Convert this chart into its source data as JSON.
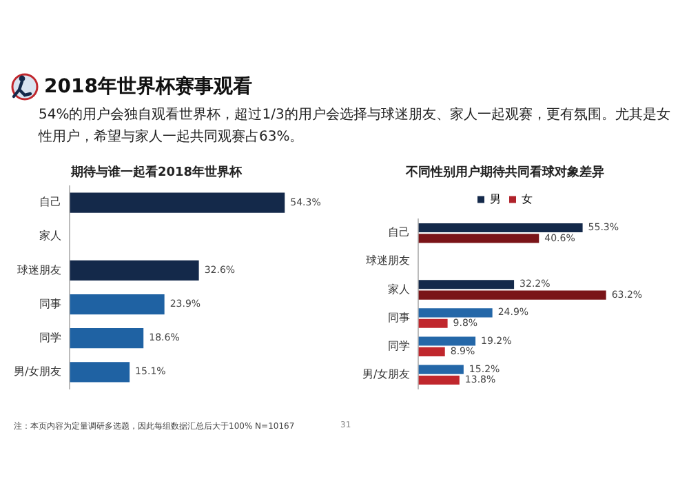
{
  "chart_data": [
    {
      "type": "bar",
      "orientation": "horizontal",
      "title": "期待与谁一起看2018年世界杯",
      "categories": [
        "自己",
        "家人",
        "球迷朋友",
        "同事",
        "同学",
        "男/女朋友"
      ],
      "values": [
        54.3,
        null,
        32.6,
        23.9,
        18.6,
        15.1
      ],
      "value_labels": [
        "54.3%",
        null,
        "32.6%",
        "23.9%",
        "18.6%",
        "15.1%"
      ],
      "colors": [
        "#14294a",
        "#14294a",
        "#14294a",
        "#1f62a3",
        "#1f62a3",
        "#1f62a3"
      ],
      "grid": false,
      "legend": false,
      "annotations": [
        "2018年世界杯赛事观看",
        "54%的用户会独自观看世界杯，超过1/3的用户会选择与球迷朋友、家人一起观赛，更有氛围。尤其是女性用户，希望与家人一起共同观赛占63%。",
        "注：本页内容为定量调研多选题，因此每组数据汇总后大于100% N=10167",
        "31"
      ]
    },
    {
      "type": "bar",
      "orientation": "horizontal",
      "title": "不同性别用户期待共同看球对象差异",
      "categories": [
        "自己",
        "球迷朋友",
        "家人",
        "同事",
        "同学",
        "男/女朋友"
      ],
      "grid": false,
      "legend": "top",
      "series": [
        {
          "name": "男",
          "color": "#14294a",
          "colors": [
            "#14294a",
            "#14294a",
            "#14294a",
            "#2467a8",
            "#2467a8",
            "#2467a8"
          ],
          "values": [
            55.3,
            null,
            32.2,
            24.9,
            19.2,
            15.2
          ],
          "value_labels": [
            "55.3%",
            null,
            "32.2%",
            "24.9%",
            "19.2%",
            "15.2%"
          ]
        },
        {
          "name": "女",
          "color": "#b0222a",
          "colors": [
            "#7a1418",
            "#7a1418",
            "#7a1418",
            "#c0272d",
            "#c0272d",
            "#c0272d"
          ],
          "values": [
            40.6,
            null,
            63.2,
            9.8,
            8.9,
            13.8
          ],
          "value_labels": [
            "40.6%",
            null,
            "63.2%",
            "9.8%",
            "8.9%",
            "13.8%"
          ]
        }
      ]
    }
  ]
}
